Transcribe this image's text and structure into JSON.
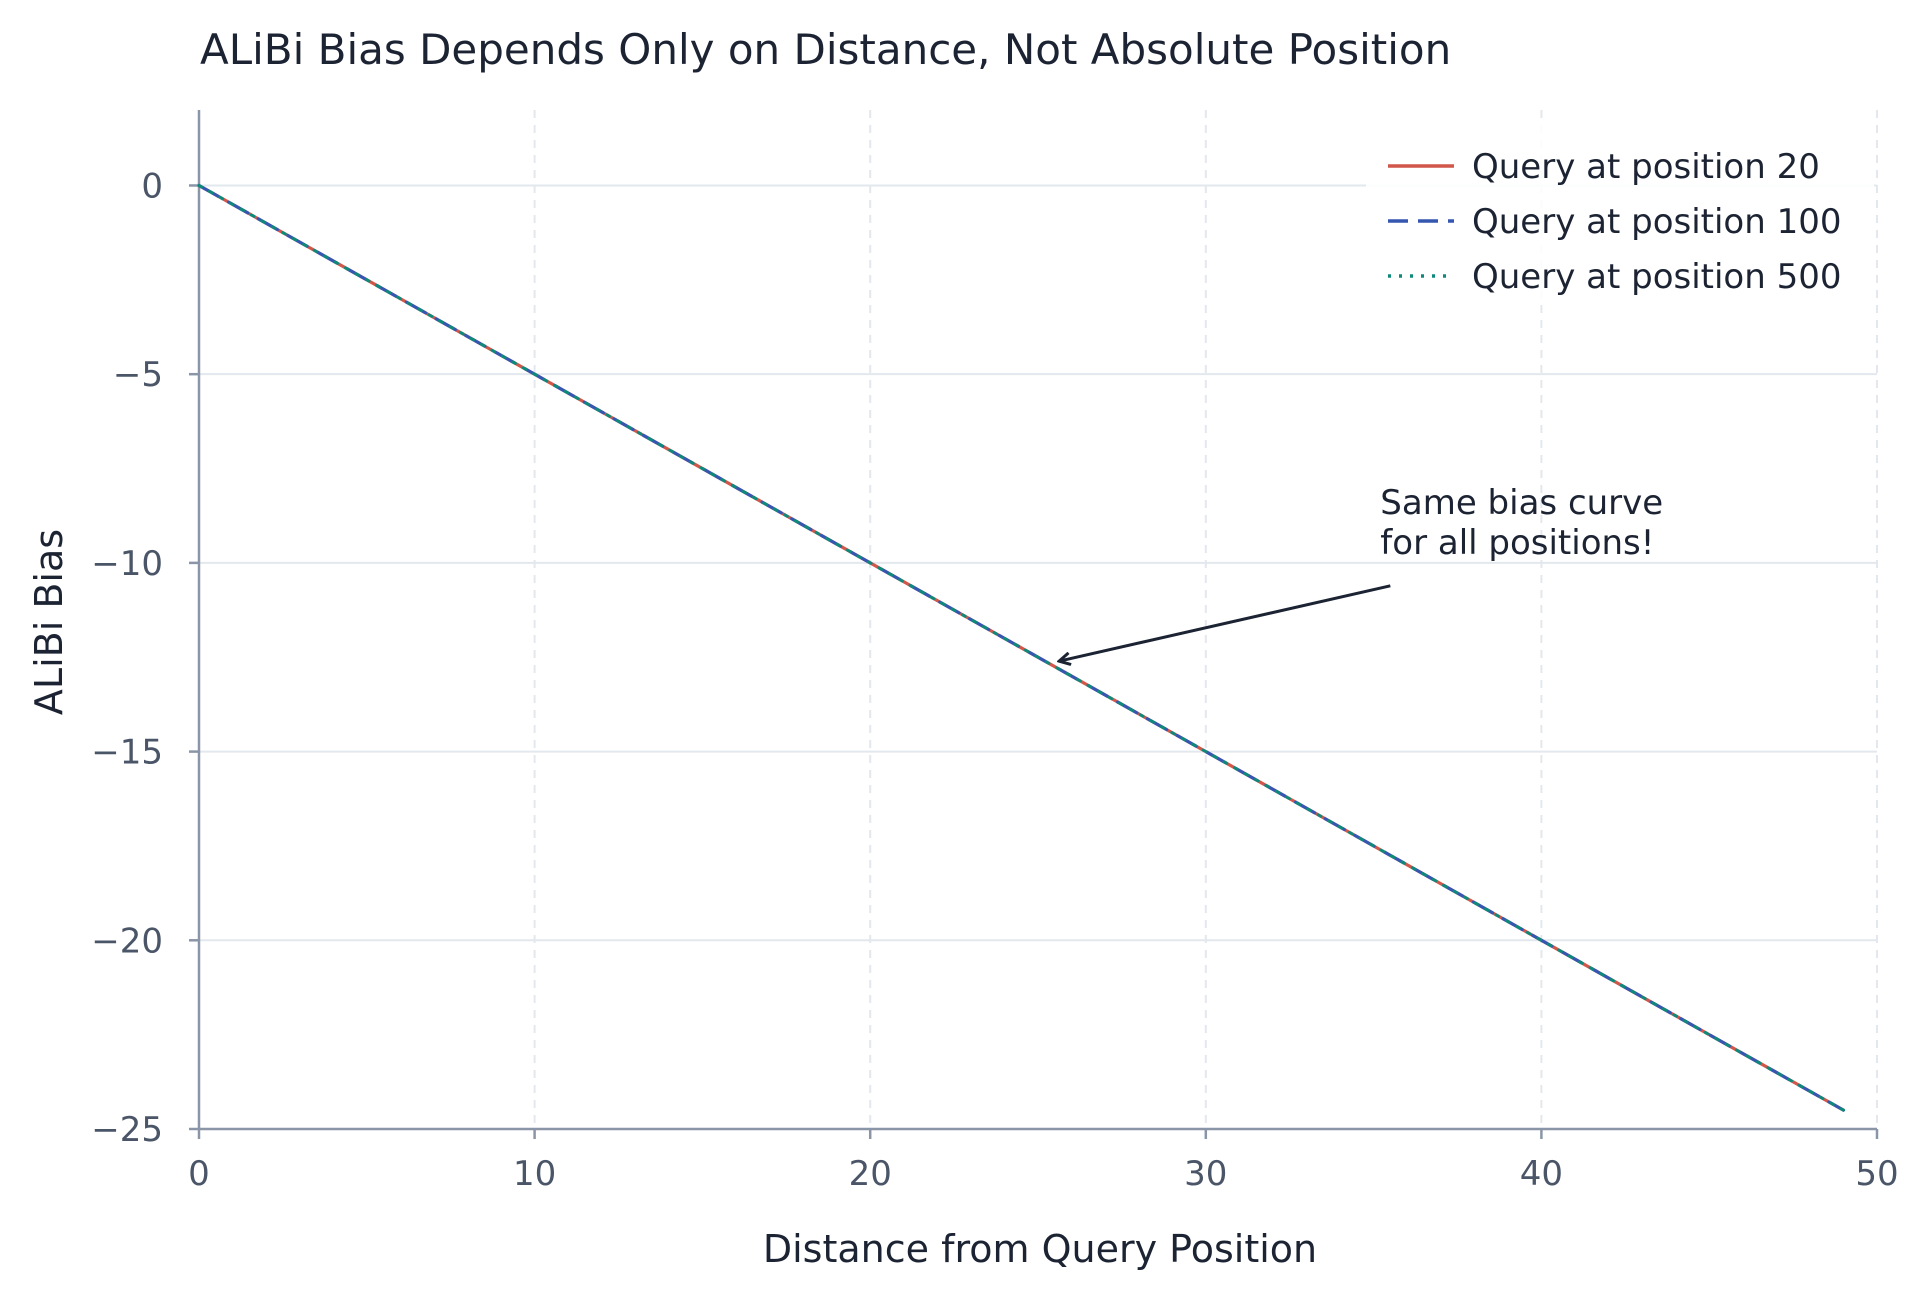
{
  "chart_data": {
    "type": "line",
    "title": "ALiBi Bias Depends Only on Distance, Not Absolute Position",
    "xlabel": "Distance from Query Position",
    "ylabel": "ALiBi Bias",
    "xlim": [
      0,
      50
    ],
    "ylim": [
      -25,
      2
    ],
    "x_ticks": [
      0,
      10,
      20,
      30,
      40,
      50
    ],
    "y_ticks": [
      0,
      -5,
      -10,
      -15,
      -20,
      -25
    ],
    "x_tick_labels": [
      "0",
      "10",
      "20",
      "30",
      "40",
      "50"
    ],
    "y_tick_labels": [
      "0",
      "−5",
      "−10",
      "−15",
      "−20",
      "−25"
    ],
    "grid": true,
    "legend_position": "top-right",
    "slope": -0.5,
    "x_range": [
      0,
      49
    ],
    "series": [
      {
        "name": "Query at position 20",
        "color": "#d1574a",
        "style": "solid",
        "x": [
          0,
          49
        ],
        "y": [
          0,
          -24.5
        ]
      },
      {
        "name": "Query at position 100",
        "color": "#3557b0",
        "style": "dashed",
        "x": [
          0,
          49
        ],
        "y": [
          0,
          -24.5
        ]
      },
      {
        "name": "Query at position 500",
        "color": "#0f8a7a",
        "style": "dotted",
        "x": [
          0,
          49
        ],
        "y": [
          0,
          -24.5
        ]
      }
    ],
    "annotation": {
      "lines": [
        "Same bias curve",
        "for all positions!"
      ],
      "point": [
        25.3,
        -12.65
      ],
      "text_anchor": [
        35.2,
        -8.7
      ]
    }
  }
}
